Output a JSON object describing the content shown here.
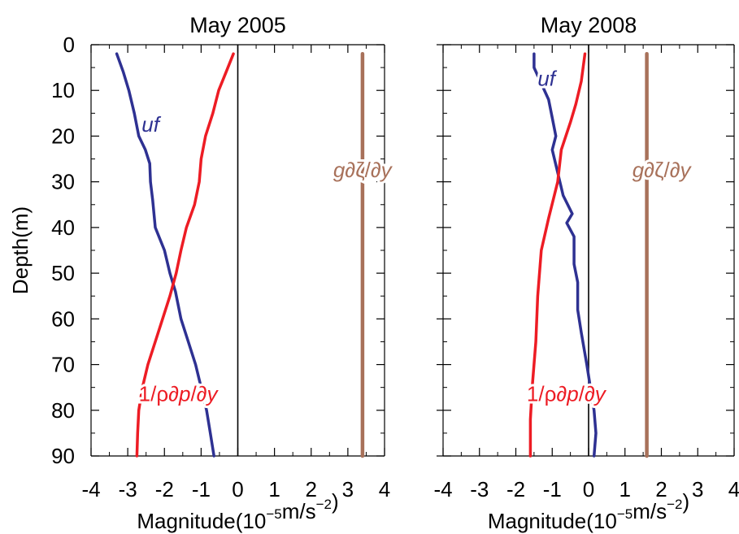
{
  "colors": {
    "uf": "#2e3192",
    "pressure": "#ed1c24",
    "surface": "#a8715a",
    "axis": "#000000"
  },
  "chart_data": [
    {
      "type": "line",
      "title": "May 2005",
      "xlabel": "Magnitude(10",
      "xlabel_exp": "−5",
      "xlabel_unit": "m/s",
      "xlabel_unit_exp": "−2",
      "xlabel_close": ")",
      "ylabel": "Depth(m)",
      "xlim": [
        -4,
        4
      ],
      "ylim": [
        0,
        90
      ],
      "x_ticks": [
        "-4",
        "-3",
        "-2",
        "-1",
        "0",
        "1",
        "2",
        "3",
        "4"
      ],
      "y_ticks": [
        "0",
        "10",
        "20",
        "30",
        "40",
        "50",
        "60",
        "70",
        "80",
        "90"
      ],
      "series": [
        {
          "name": "uf",
          "label_x": -2.62,
          "label_y": 19,
          "points": [
            [
              -3.3,
              2
            ],
            [
              -3.12,
              6
            ],
            [
              -2.97,
              10
            ],
            [
              -2.82,
              15
            ],
            [
              -2.7,
              20
            ],
            [
              -2.52,
              23
            ],
            [
              -2.4,
              26
            ],
            [
              -2.38,
              30
            ],
            [
              -2.32,
              34
            ],
            [
              -2.25,
              40
            ],
            [
              -2.0,
              45
            ],
            [
              -1.85,
              50
            ],
            [
              -1.7,
              54
            ],
            [
              -1.55,
              60
            ],
            [
              -1.35,
              65
            ],
            [
              -1.15,
              70
            ],
            [
              -1.0,
              75
            ],
            [
              -0.85,
              80
            ],
            [
              -0.75,
              85
            ],
            [
              -0.65,
              90
            ]
          ]
        },
        {
          "name": "1/ρ∂p/∂y",
          "label_x": -2.7,
          "label_y": 78,
          "points": [
            [
              -0.12,
              2
            ],
            [
              -0.32,
              6
            ],
            [
              -0.52,
              10
            ],
            [
              -0.68,
              15
            ],
            [
              -0.88,
              20
            ],
            [
              -1.0,
              25
            ],
            [
              -1.05,
              30
            ],
            [
              -1.18,
              35
            ],
            [
              -1.4,
              40
            ],
            [
              -1.55,
              45
            ],
            [
              -1.68,
              50
            ],
            [
              -1.85,
              55
            ],
            [
              -2.05,
              60
            ],
            [
              -2.25,
              65
            ],
            [
              -2.45,
              70
            ],
            [
              -2.6,
              75
            ],
            [
              -2.7,
              80
            ],
            [
              -2.73,
              85
            ],
            [
              -2.75,
              90
            ]
          ]
        },
        {
          "name": "g∂ζ/∂y",
          "label_x": 2.6,
          "label_y": 29,
          "points": [
            [
              3.4,
              2
            ],
            [
              3.4,
              90
            ]
          ]
        }
      ]
    },
    {
      "type": "line",
      "title": "May 2008",
      "xlabel": "Magnitude(10",
      "xlabel_exp": "−5",
      "xlabel_unit": "m/s",
      "xlabel_unit_exp": "−2",
      "xlabel_close": ")",
      "ylabel": "",
      "xlim": [
        -4,
        4
      ],
      "ylim": [
        0,
        90
      ],
      "x_ticks": [
        "-4",
        "-3",
        "-2",
        "-1",
        "0",
        "1",
        "2",
        "3",
        "4"
      ],
      "y_ticks": [
        "0",
        "10",
        "20",
        "30",
        "40",
        "50",
        "60",
        "70",
        "80",
        "90"
      ],
      "series": [
        {
          "name": "uf",
          "label_x": -1.4,
          "label_y": 9,
          "points": [
            [
              -1.5,
              2
            ],
            [
              -1.5,
              5
            ],
            [
              -1.1,
              12
            ],
            [
              -1.0,
              16
            ],
            [
              -0.9,
              20
            ],
            [
              -1.0,
              23
            ],
            [
              -0.85,
              28
            ],
            [
              -0.7,
              33
            ],
            [
              -0.45,
              37
            ],
            [
              -0.6,
              39
            ],
            [
              -0.4,
              42
            ],
            [
              -0.4,
              48
            ],
            [
              -0.3,
              52
            ],
            [
              -0.3,
              58
            ],
            [
              -0.2,
              63
            ],
            [
              -0.05,
              70
            ],
            [
              0.05,
              75
            ],
            [
              0.15,
              80
            ],
            [
              0.2,
              85
            ],
            [
              0.15,
              90
            ]
          ]
        },
        {
          "name": "1/ρ∂p/∂y",
          "label_x": -1.7,
          "label_y": 78,
          "points": [
            [
              -0.1,
              2
            ],
            [
              -0.2,
              8
            ],
            [
              -0.35,
              13
            ],
            [
              -0.5,
              17
            ],
            [
              -0.75,
              23
            ],
            [
              -0.85,
              30
            ],
            [
              -1.1,
              38
            ],
            [
              -1.3,
              45
            ],
            [
              -1.4,
              55
            ],
            [
              -1.45,
              65
            ],
            [
              -1.55,
              75
            ],
            [
              -1.6,
              82
            ],
            [
              -1.6,
              90
            ]
          ]
        },
        {
          "name": "g∂ζ/∂y",
          "label_x": 1.2,
          "label_y": 29,
          "points": [
            [
              1.6,
              2
            ],
            [
              1.6,
              90
            ]
          ]
        }
      ]
    }
  ]
}
